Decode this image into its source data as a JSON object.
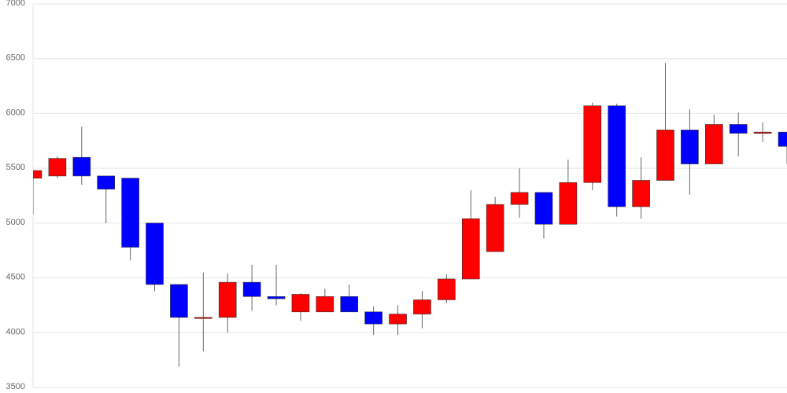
{
  "chart_data": {
    "type": "candlestick",
    "open": [
      5410,
      5430,
      5600,
      5430,
      5410,
      5000,
      4440,
      4140,
      4140,
      4460,
      4330,
      4190,
      4190,
      4330,
      4190,
      4080,
      4170,
      4300,
      4490,
      4740,
      5170,
      5280,
      4990,
      5370,
      6070,
      5150,
      5390,
      5850,
      5540,
      5900,
      5820,
      5830
    ],
    "high": [
      5480,
      5610,
      5880,
      5430,
      5410,
      5000,
      4440,
      4550,
      4540,
      4620,
      4620,
      4360,
      4400,
      4440,
      4240,
      4250,
      4380,
      4530,
      5300,
      5240,
      5500,
      5280,
      5580,
      6100,
      6090,
      5600,
      6460,
      6040,
      5990,
      6010,
      5920,
      5830
    ],
    "low": [
      5080,
      5410,
      5350,
      5000,
      4660,
      4380,
      3690,
      3830,
      4000,
      4200,
      4250,
      4110,
      4190,
      4190,
      3980,
      3980,
      4040,
      4270,
      4490,
      4740,
      5050,
      4860,
      4990,
      5300,
      5060,
      5040,
      5390,
      5260,
      5540,
      5610,
      5740,
      5540
    ],
    "close": [
      5480,
      5590,
      5430,
      5310,
      4780,
      4440,
      4140,
      4140,
      4460,
      4330,
      4310,
      4350,
      4330,
      4190,
      4080,
      4170,
      4300,
      4490,
      5040,
      5170,
      5280,
      4990,
      5370,
      6070,
      5150,
      5390,
      5850,
      5540,
      5900,
      5820,
      5830,
      5700
    ],
    "up_color": "#ff0000",
    "down_color": "#0000ff",
    "ylim": [
      3500,
      7000
    ],
    "yticks": [
      3500,
      4000,
      4500,
      5000,
      5500,
      6000,
      6500,
      7000
    ],
    "grid": true
  }
}
